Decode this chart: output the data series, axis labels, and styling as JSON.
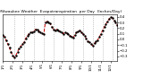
{
  "title": "Milwaukee Weather  Evapotranspiration  per Day  (Inches/Day)",
  "line_color": "#cc0000",
  "line_style": "--",
  "marker": ".",
  "marker_color": "#000000",
  "marker_size": 1.5,
  "linewidth": 0.7,
  "background_color": "#ffffff",
  "vline_color": "#999999",
  "vline_style": ":",
  "vline_positions": [
    7,
    13,
    19,
    25,
    31,
    37,
    43,
    49,
    55,
    61,
    67
  ],
  "ylim": [
    -0.38,
    0.45
  ],
  "yticks": [
    0.4,
    0.3,
    0.2,
    0.1,
    0.0,
    -0.1,
    -0.2,
    -0.3
  ],
  "x_values": [
    0,
    1,
    2,
    3,
    4,
    5,
    6,
    7,
    8,
    9,
    10,
    11,
    12,
    13,
    14,
    15,
    16,
    17,
    18,
    19,
    20,
    21,
    22,
    23,
    24,
    25,
    26,
    27,
    28,
    29,
    30,
    31,
    32,
    33,
    34,
    35,
    36,
    37,
    38,
    39,
    40,
    41,
    42,
    43,
    44,
    45,
    46,
    47,
    48,
    49,
    50,
    51,
    52,
    53,
    54,
    55,
    56,
    57,
    58,
    59,
    60,
    61,
    62,
    63,
    64,
    65,
    66,
    67,
    68,
    69,
    70
  ],
  "y_values": [
    0.08,
    0.04,
    -0.02,
    -0.08,
    -0.15,
    -0.22,
    -0.28,
    -0.32,
    -0.28,
    -0.22,
    -0.16,
    -0.12,
    -0.08,
    -0.05,
    0.02,
    0.06,
    0.1,
    0.12,
    0.13,
    0.14,
    0.18,
    0.17,
    0.15,
    0.13,
    0.11,
    0.09,
    0.3,
    0.32,
    0.3,
    0.28,
    0.22,
    0.18,
    0.16,
    0.18,
    0.16,
    0.14,
    0.12,
    0.1,
    0.13,
    0.11,
    0.09,
    0.07,
    0.05,
    0.03,
    0.08,
    0.12,
    0.14,
    0.16,
    0.12,
    0.1,
    0.06,
    0.02,
    -0.03,
    -0.05,
    -0.08,
    -0.11,
    -0.07,
    -0.04,
    -0.01,
    0.04,
    0.1,
    0.16,
    0.22,
    0.27,
    0.32,
    0.36,
    0.4,
    0.38,
    0.34,
    0.3,
    0.26
  ],
  "xtick_positions": [
    0,
    6,
    12,
    18,
    24,
    30,
    36,
    42,
    48,
    54,
    60,
    66
  ],
  "xtick_labels": [
    "1/1",
    "2/1",
    "3/1",
    "4/1",
    "5/1",
    "6/1",
    "7/1",
    "8/1",
    "9/1",
    "10/1",
    "11/1",
    "12/1"
  ]
}
